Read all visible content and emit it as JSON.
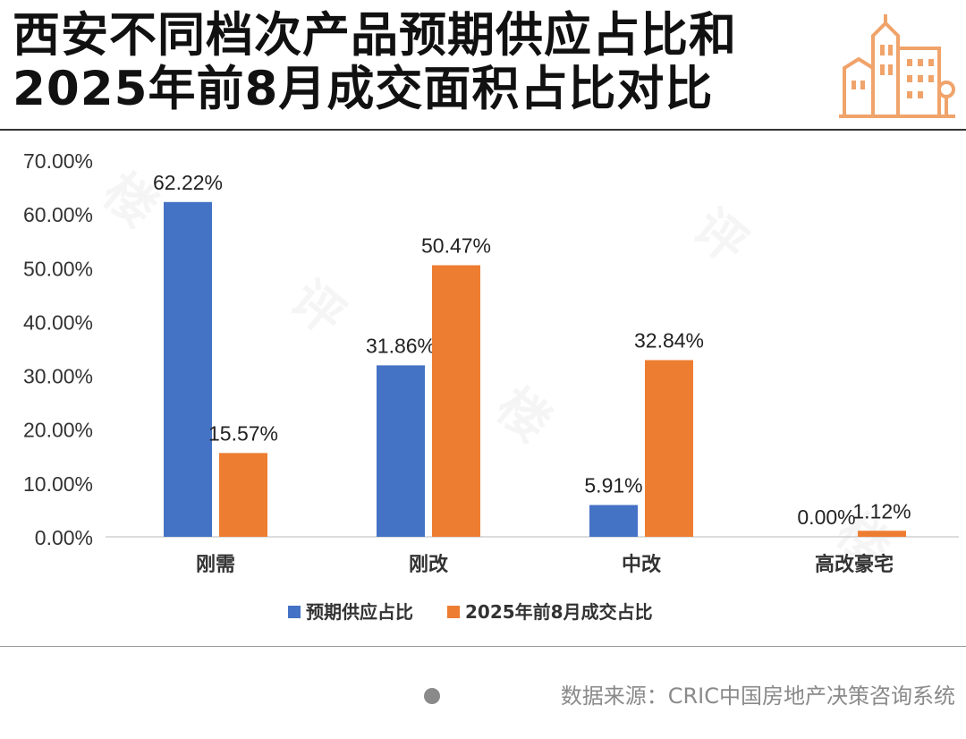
{
  "title_lines": [
    "西安不同档次产品预期供应占比和",
    "2025年前8月成交面积占比对比"
  ],
  "source": "数据来源：CRIC中国房地产决策咨询系统",
  "colors": {
    "supply": "#4472C4",
    "deal": "#ED7D31",
    "logo": "#F0A36A"
  },
  "chart_data": {
    "type": "bar",
    "categories": [
      "刚需",
      "刚改",
      "中改",
      "高改豪宅"
    ],
    "series": [
      {
        "name": "预期供应占比",
        "values": [
          62.22,
          31.86,
          5.91,
          0.0
        ],
        "labels": [
          "62.22%",
          "31.86%",
          "5.91%",
          "0.00%"
        ]
      },
      {
        "name": "2025年前8月成交占比",
        "values": [
          15.57,
          50.47,
          32.84,
          1.12
        ],
        "labels": [
          "15.57%",
          "50.47%",
          "32.84%",
          "1.12%"
        ]
      }
    ],
    "yticks": [
      "0.00%",
      "10.00%",
      "20.00%",
      "30.00%",
      "40.00%",
      "50.00%",
      "60.00%",
      "70.00%"
    ],
    "ylim": [
      0,
      70
    ],
    "legend_position": "bottom",
    "grid": false
  }
}
